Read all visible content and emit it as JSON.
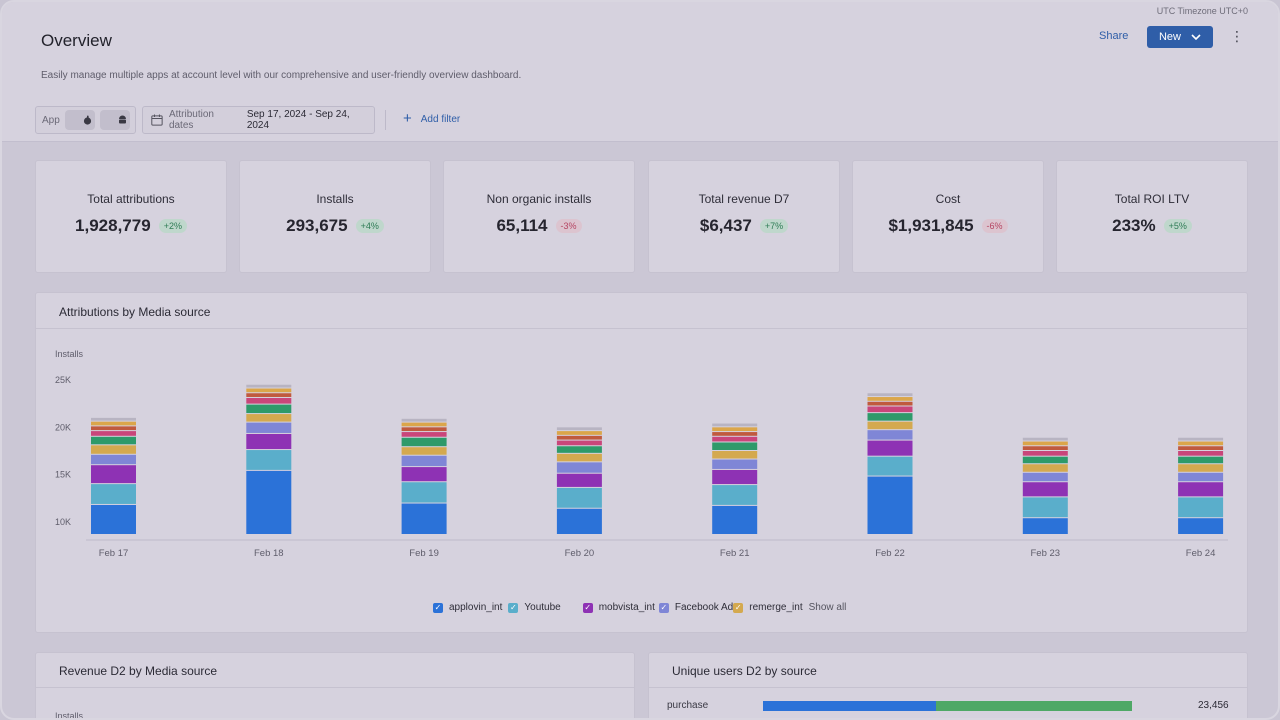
{
  "header": {
    "timezone": "UTC Timezone UTC+0",
    "title": "Overview",
    "subtitle": "Easily manage multiple apps at account level with our comprehensive and user-friendly overview dashboard.",
    "share_label": "Share",
    "new_label": "New",
    "more_glyph": "⋮"
  },
  "filters": {
    "app_label": "App",
    "attribution_label": "Attribution dates",
    "date_range": "Sep 17, 2024 - Sep 24, 2024",
    "add_filter_label": "Add filter"
  },
  "kpis": [
    {
      "label": "Total attributions",
      "value": "1,928,779",
      "change": "+2%",
      "trend": "up"
    },
    {
      "label": "Installs",
      "value": "293,675",
      "change": "+4%",
      "trend": "up"
    },
    {
      "label": "Non organic installs",
      "value": "65,114",
      "change": "-3%",
      "trend": "down"
    },
    {
      "label": "Total revenue D7",
      "value": "$6,437",
      "change": "+7%",
      "trend": "up"
    },
    {
      "label": "Cost",
      "value": "$1,931,845",
      "change": "-6%",
      "trend": "down"
    },
    {
      "label": "Total ROI LTV",
      "value": "233%",
      "change": "+5%",
      "trend": "up"
    }
  ],
  "attributions_panel": {
    "title": "Attributions by Media source"
  },
  "legend": {
    "items": [
      "applovin_int",
      "Youtube",
      "mobvista_int",
      "Facebook Ad",
      "remerge_int"
    ],
    "show_all": "Show all"
  },
  "revenue_panel": {
    "title": "Revenue D2 by Media source",
    "ylabel": "Installs"
  },
  "unique_users_panel": {
    "title": "Unique users D2 by source",
    "rows": [
      {
        "label": "purchase",
        "value": "23,456",
        "segments": [
          0.47,
          0.53
        ]
      }
    ]
  },
  "colors": {
    "applovin_int": "#2b72d8",
    "Youtube": "#5aaecb",
    "mobvista_int": "#8e32b4",
    "Facebook Ad": "#7f86d6",
    "remerge_int": "#d4a94f",
    "series6": "#2e9a6a",
    "series7": "#c9467a",
    "series8": "#c05a3e",
    "series9": "#dba64a",
    "series10": "#b8b4c2",
    "bar_blue": "#2b72d8",
    "bar_green": "#4fa866"
  },
  "chart_data": {
    "type": "bar",
    "stacked": true,
    "ylabel": "Installs",
    "y_ticks": [
      "25K",
      "20K",
      "15K",
      "10K"
    ],
    "ylim": [
      7000,
      25000
    ],
    "categories": [
      "Feb 17",
      "Feb 18",
      "Feb 19",
      "Feb 20",
      "Feb 21",
      "Feb 22",
      "Feb 23",
      "Feb 24"
    ],
    "series": [
      {
        "name": "applovin_int",
        "values": [
          11800,
          15400,
          11950,
          11400,
          11700,
          14800,
          10400,
          10400
        ]
      },
      {
        "name": "Youtube",
        "values": [
          2200,
          2200,
          2250,
          2200,
          2200,
          2100,
          2200,
          2200
        ]
      },
      {
        "name": "mobvista_int",
        "values": [
          2000,
          1700,
          1600,
          1500,
          1600,
          1700,
          1600,
          1600
        ]
      },
      {
        "name": "Facebook Ad",
        "values": [
          1100,
          1200,
          1200,
          1200,
          1100,
          1100,
          1000,
          1000
        ]
      },
      {
        "name": "remerge_int",
        "values": [
          1000,
          900,
          900,
          900,
          900,
          900,
          900,
          900
        ]
      },
      {},
      {},
      {},
      {},
      {}
    ],
    "extra_segments": [
      [
        900,
        1000,
        1000,
        800,
        900,
        900,
        800,
        800
      ],
      [
        600,
        700,
        600,
        600,
        600,
        700,
        600,
        600
      ],
      [
        500,
        500,
        500,
        500,
        500,
        500,
        500,
        500
      ],
      [
        500,
        500,
        500,
        500,
        500,
        500,
        500,
        500
      ],
      [
        400,
        400,
        400,
        400,
        400,
        400,
        400,
        400
      ]
    ]
  }
}
